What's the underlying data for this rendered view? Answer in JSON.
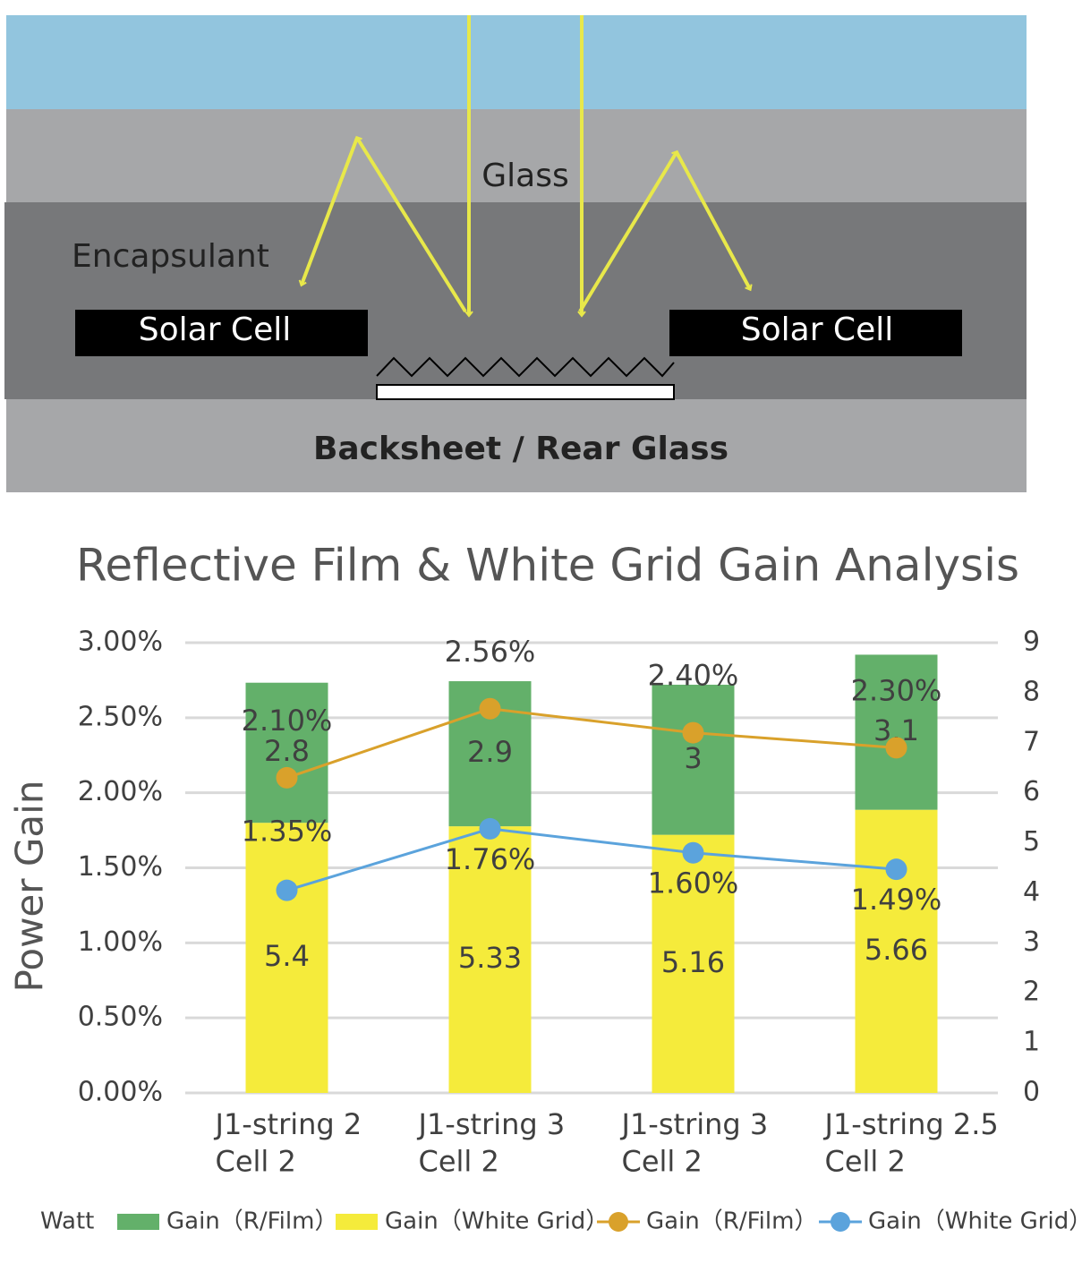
{
  "diagram": {
    "layers": {
      "glass": "Glass",
      "encapsulant": "Encapsulant",
      "backsheet": "Backsheet / Rear Glass"
    },
    "cells": [
      "Solar Cell",
      "Solar Cell"
    ]
  },
  "chart_data": {
    "type": "bar",
    "title": "Reflective Film & White Grid Gain Analysis",
    "y_label": "Power Gain",
    "legend_title": "Watt",
    "categories": [
      "J1-string 2\nCell 2",
      "J1-string 3\nCell 2",
      "J1-string 3\nCell 2",
      "J1-string 2.5\nCell 2"
    ],
    "series": [
      {
        "name": "Gain（White Grid）",
        "color": "#f5eb3b",
        "kind": "bar",
        "axis": "y2",
        "values": [
          5.4,
          5.33,
          5.16,
          5.66
        ]
      },
      {
        "name": "Gain（R/Film）",
        "color": "#63b06a",
        "kind": "bar",
        "axis": "y2",
        "values": [
          2.8,
          2.9,
          3,
          3.1
        ]
      },
      {
        "name": "Gain（R/Film）",
        "color": "#d9a12b",
        "kind": "line",
        "values": [
          2.1,
          2.56,
          2.4,
          2.3
        ],
        "value_labels": [
          "2.10%",
          "2.56%",
          "2.40%",
          "2.30%"
        ]
      },
      {
        "name": "Gain（White Grid）",
        "color": "#5ba3dc",
        "kind": "line",
        "values": [
          1.35,
          1.76,
          1.6,
          1.49
        ],
        "value_labels": [
          "1.35%",
          "1.76%",
          "1.60%",
          "1.49%"
        ]
      }
    ],
    "legend_order": [
      1,
      0,
      2,
      3
    ],
    "ylim": [
      0,
      3
    ],
    "yticks": [
      {
        "value": 0,
        "label": "0.00%"
      },
      {
        "value": 0.5,
        "label": "0.50%"
      },
      {
        "value": 1,
        "label": "1.00%"
      },
      {
        "value": 1.5,
        "label": "1.50%"
      },
      {
        "value": 2,
        "label": "2.00%"
      },
      {
        "value": 2.5,
        "label": "2.50%"
      },
      {
        "value": 3,
        "label": "3.00%"
      }
    ],
    "y2lim": [
      0,
      9
    ],
    "y2ticks": [
      0,
      1,
      2,
      3,
      4,
      5,
      6,
      7,
      8,
      9
    ],
    "grid": true
  }
}
